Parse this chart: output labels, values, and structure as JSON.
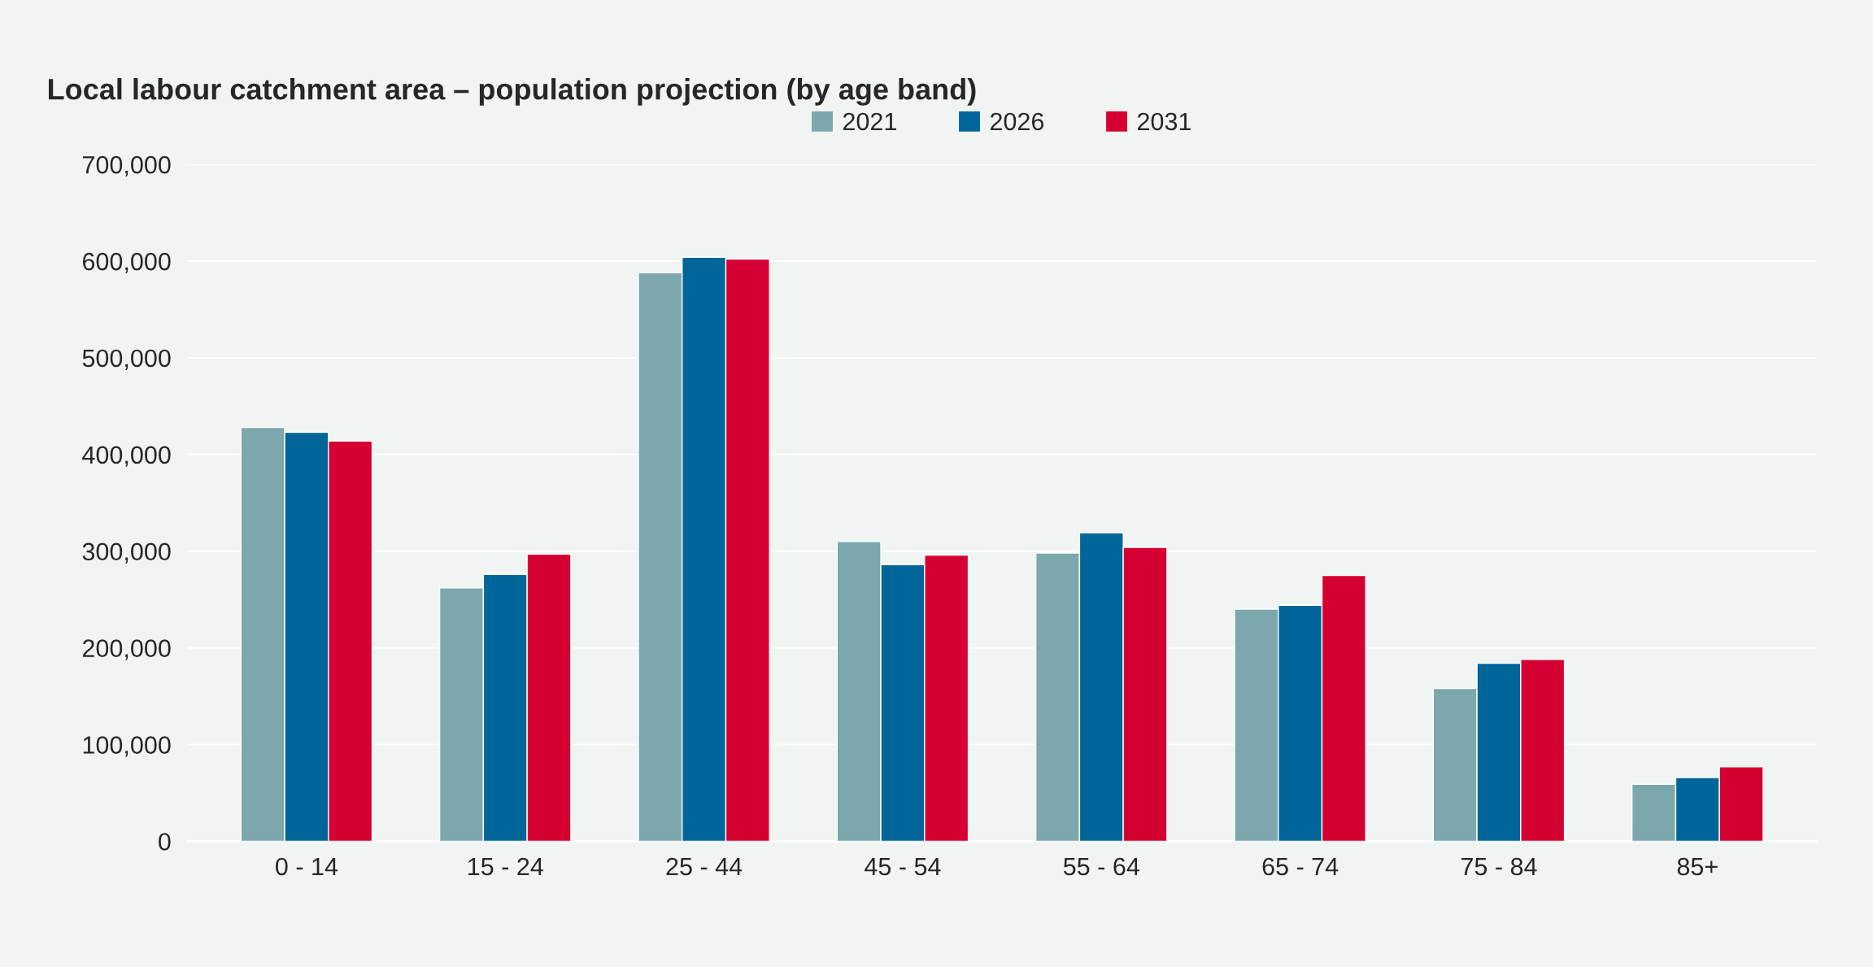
{
  "chart_data": {
    "type": "bar",
    "title": "Local labour catchment area – population projection (by age band)",
    "categories": [
      "0 - 14",
      "15 - 24",
      "25 - 44",
      "45 - 54",
      "55 - 64",
      "65 - 74",
      "75 - 84",
      "85+"
    ],
    "series": [
      {
        "name": "2021",
        "color": "#7ba7ad",
        "values": [
          428000,
          262000,
          588000,
          310000,
          298000,
          240000,
          158000,
          59000
        ]
      },
      {
        "name": "2026",
        "color": "#006699",
        "values": [
          423000,
          276000,
          604000,
          286000,
          319000,
          244000,
          184000,
          66000
        ]
      },
      {
        "name": "2031",
        "color": "#d50032",
        "values": [
          414000,
          297000,
          602000,
          296000,
          304000,
          275000,
          188000,
          77000
        ]
      }
    ],
    "ylim": [
      0,
      700000
    ],
    "yticks": [
      {
        "value": 0,
        "label": "0"
      },
      {
        "value": 100000,
        "label": "100,000"
      },
      {
        "value": 200000,
        "label": "200,000"
      },
      {
        "value": 300000,
        "label": "300,000"
      },
      {
        "value": 400000,
        "label": "400,000"
      },
      {
        "value": 500000,
        "label": "500,000"
      },
      {
        "value": 600000,
        "label": "600,000"
      },
      {
        "value": 700000,
        "label": "700,000"
      }
    ],
    "grid": "y",
    "legend": "top"
  }
}
